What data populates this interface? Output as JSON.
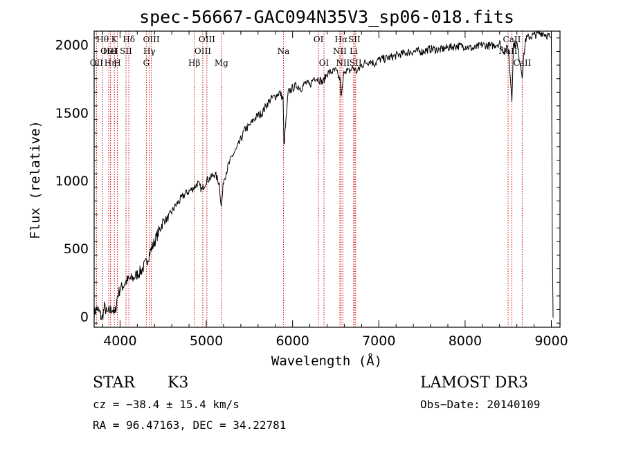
{
  "chart_data": {
    "type": "line",
    "title": "spec-56667-GAC094N35V3_sp06-018.fits",
    "xlabel": "Wavelength (Å)",
    "ylabel": "Flux (relative)",
    "xlim": [
      3700,
      9100
    ],
    "ylim": [
      -80,
      2100
    ],
    "x_ticks": [
      4000,
      5000,
      6000,
      7000,
      8000,
      9000
    ],
    "x_tick_labels": [
      "4000",
      "5000",
      "6000",
      "7000",
      "8000",
      "9000"
    ],
    "y_ticks": [
      0,
      500,
      1000,
      1500,
      2000
    ],
    "y_tick_labels": [
      "0",
      "500",
      "1000",
      "1500",
      "2000"
    ],
    "series": [
      {
        "name": "flux",
        "x": [
          3700,
          3730,
          3760,
          3790,
          3820,
          3850,
          3880,
          3910,
          3940,
          3970,
          4000,
          4030,
          4060,
          4100,
          4150,
          4200,
          4250,
          4300,
          4340,
          4380,
          4420,
          4460,
          4500,
          4550,
          4600,
          4650,
          4700,
          4750,
          4800,
          4860,
          4900,
          4950,
          5000,
          5050,
          5100,
          5150,
          5175,
          5200,
          5250,
          5300,
          5350,
          5400,
          5450,
          5500,
          5550,
          5600,
          5650,
          5700,
          5750,
          5800,
          5850,
          5890,
          5900,
          5950,
          6000,
          6050,
          6100,
          6150,
          6200,
          6250,
          6300,
          6350,
          6400,
          6450,
          6500,
          6550,
          6563,
          6600,
          6650,
          6700,
          6750,
          6800,
          6850,
          6900,
          6950,
          7000,
          7100,
          7200,
          7300,
          7400,
          7500,
          7600,
          7700,
          7800,
          7900,
          8000,
          8100,
          8200,
          8300,
          8400,
          8450,
          8500,
          8542,
          8560,
          8600,
          8662,
          8700,
          8750,
          8800,
          8850,
          8900,
          8950,
          8980,
          9000,
          9010,
          9020
        ],
        "y": [
          20,
          60,
          30,
          -20,
          70,
          20,
          40,
          60,
          10,
          150,
          200,
          220,
          250,
          270,
          280,
          310,
          340,
          390,
          460,
          520,
          580,
          640,
          700,
          720,
          770,
          820,
          860,
          900,
          920,
          950,
          980,
          930,
          1000,
          1020,
          1050,
          980,
          800,
          1000,
          1100,
          1180,
          1230,
          1300,
          1380,
          1400,
          1450,
          1480,
          1500,
          1560,
          1600,
          1620,
          1650,
          1600,
          1250,
          1650,
          1680,
          1700,
          1680,
          1720,
          1700,
          1760,
          1750,
          1720,
          1790,
          1800,
          1810,
          1740,
          1600,
          1820,
          1800,
          1830,
          1800,
          1850,
          1870,
          1880,
          1860,
          1890,
          1900,
          1920,
          1940,
          1950,
          1950,
          1970,
          1960,
          1980,
          1990,
          1990,
          1970,
          2000,
          1990,
          2010,
          1950,
          1980,
          1600,
          2000,
          2010,
          1780,
          2040,
          2060,
          2070,
          2080,
          2090,
          2070,
          2060,
          2050,
          600,
          -10
        ]
      }
    ],
    "lines": [
      {
        "name": "OII",
        "wavelength": 3727,
        "row": 2
      },
      {
        "name": "Hθ",
        "wavelength": 3798,
        "row": 0
      },
      {
        "name": "OIII",
        "wavelength": 3869,
        "row": 1
      },
      {
        "name": "Hη",
        "wavelength": 3889,
        "row": 2
      },
      {
        "name": "HeI",
        "wavelength": 3889,
        "row": 1
      },
      {
        "name": "K",
        "wavelength": 3934,
        "row": 0
      },
      {
        "name": "H",
        "wavelength": 3969,
        "row": 2
      },
      {
        "name": "SII",
        "wavelength": 4069,
        "row": 1
      },
      {
        "name": "Hδ",
        "wavelength": 4102,
        "row": 0
      },
      {
        "name": "G",
        "wavelength": 4305,
        "row": 2
      },
      {
        "name": "Hγ",
        "wavelength": 4340,
        "row": 1
      },
      {
        "name": "OIII",
        "wavelength": 4363,
        "row": 0
      },
      {
        "name": "Hβ",
        "wavelength": 4861,
        "row": 2
      },
      {
        "name": "OIII",
        "wavelength": 4959,
        "row": 1
      },
      {
        "name": "OIII",
        "wavelength": 5007,
        "row": 0
      },
      {
        "name": "Mg",
        "wavelength": 5175,
        "row": 2
      },
      {
        "name": "Na",
        "wavelength": 5894,
        "row": 1
      },
      {
        "name": "OI",
        "wavelength": 6300,
        "row": 0
      },
      {
        "name": "OI",
        "wavelength": 6364,
        "row": 2
      },
      {
        "name": "NII",
        "wavelength": 6548,
        "row": 1
      },
      {
        "name": "NII",
        "wavelength": 6583,
        "row": 2
      },
      {
        "name": "Hα",
        "wavelength": 6563,
        "row": 0
      },
      {
        "name": "Li",
        "wavelength": 6708,
        "row": 1
      },
      {
        "name": "SII",
        "wavelength": 6716,
        "row": 0
      },
      {
        "name": "SII",
        "wavelength": 6731,
        "row": 2
      },
      {
        "name": "NaII",
        "wavelength": 8498,
        "row": 1
      },
      {
        "name": "CaII",
        "wavelength": 8542,
        "row": 0
      },
      {
        "name": "CaII",
        "wavelength": 8662,
        "row": 2
      }
    ]
  },
  "info": {
    "object_class": "STAR",
    "subclass": "K3",
    "survey": "LAMOST DR3",
    "redshift": "cz = −38.4 ± 15.4 km/s",
    "obs_date": "Obs−Date: 20140109",
    "coords": "RA =  96.47163, DEC =  34.22781"
  },
  "colors": {
    "line_marker": "#cc0000",
    "spectrum": "#000000"
  }
}
